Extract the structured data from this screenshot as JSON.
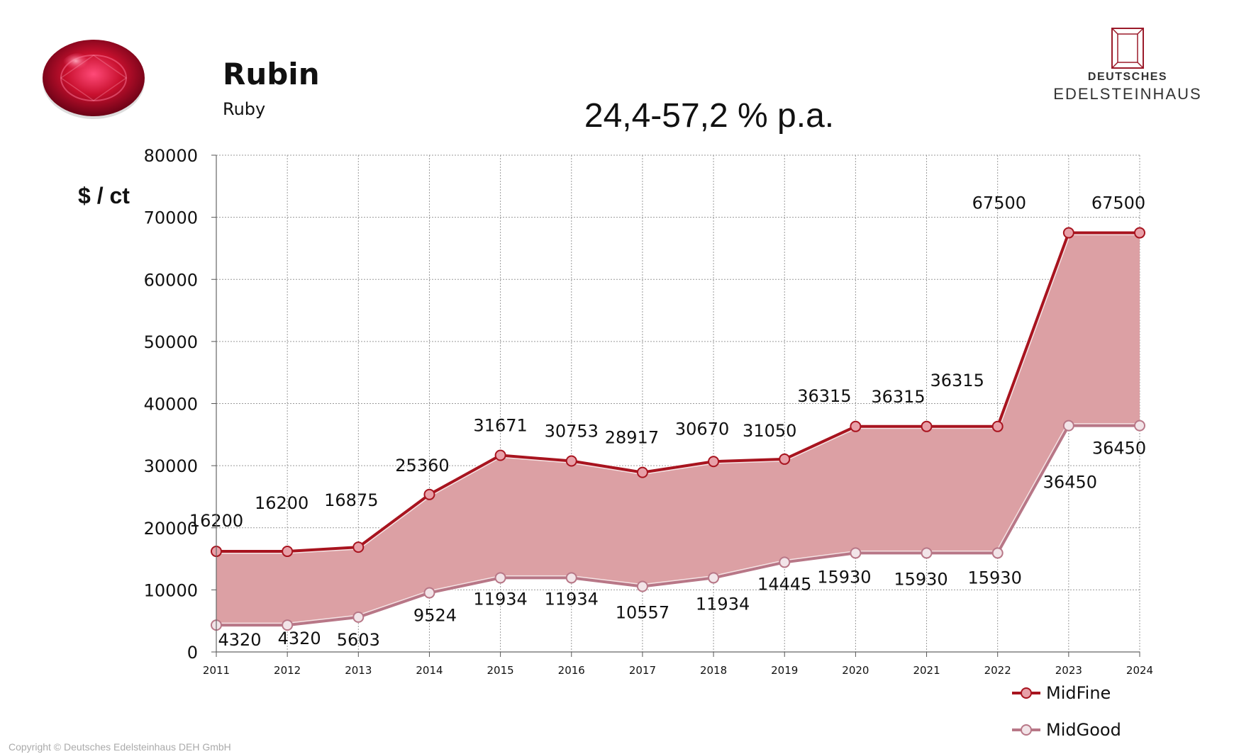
{
  "header": {
    "title": "Rubin",
    "subtitle": "Ruby",
    "headline": "24,4-57,2 % p.a."
  },
  "logo": {
    "line1": "DEUTSCHES",
    "line2": "EDELSTEINHAUS"
  },
  "footer": {
    "copyright": "Copyright © Deutsches Edelsteinhaus DEH GmbH"
  },
  "chart_data": {
    "type": "area",
    "ylabel": "$ / ct",
    "ylim": [
      0,
      80000
    ],
    "yticks": [
      0,
      10000,
      20000,
      30000,
      40000,
      50000,
      60000,
      70000,
      80000
    ],
    "grid": true,
    "legend_position": "bottom-right",
    "categories": [
      "2011",
      "2012",
      "2013",
      "2014",
      "2015",
      "2016",
      "2017",
      "2018",
      "2019",
      "2020",
      "2021",
      "2022",
      "2023",
      "2024"
    ],
    "series": [
      {
        "name": "MidFine",
        "values": [
          16200,
          16200,
          16875,
          25360,
          31671,
          30753,
          28917,
          30670,
          31050,
          36315,
          36315,
          36315,
          67500,
          67500
        ],
        "color": "#a8141f"
      },
      {
        "name": "MidGood",
        "values": [
          4320,
          4320,
          5603,
          9524,
          11934,
          11934,
          10557,
          11934,
          14445,
          15930,
          15930,
          15930,
          36450,
          36450
        ],
        "color": "#b87787"
      }
    ],
    "fill_color": "#dca0a4"
  }
}
